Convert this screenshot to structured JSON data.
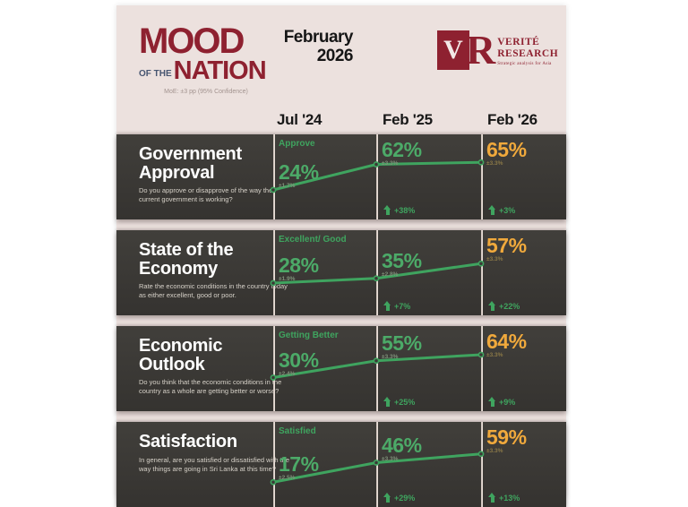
{
  "header": {
    "logo_word1": "MOOD",
    "logo_of_the": "OF THE",
    "logo_word2": "NATION",
    "moe_note": "MoE: ±3 pp (95% Confidence)",
    "date_line1": "February",
    "date_line2": "2026"
  },
  "brand": {
    "logo_v": "V",
    "logo_r": "R",
    "name_line1": "VERITÉ",
    "name_line2": "RESEARCH",
    "tagline": "Strategic analysis for Asia"
  },
  "columns": [
    "Jul '24",
    "Feb '25",
    "Feb '26"
  ],
  "colors": {
    "green": "#3fa45f",
    "orange": "#f0a93c",
    "maroon": "#8e2130",
    "navy": "#475671",
    "row_dark": "#3b3936",
    "background_pink": "#ece1de"
  },
  "rows": [
    {
      "title": "Government Approval",
      "question": "Do you approve or disapprove of the way the current government is working?",
      "series_label": "Approve",
      "points": [
        {
          "value": "24%",
          "moe": "±1.7%",
          "change": ""
        },
        {
          "value": "62%",
          "moe": "±3.3%",
          "change": "+38%"
        },
        {
          "value": "65%",
          "moe": "±3.3%",
          "change": "+3%"
        }
      ]
    },
    {
      "title": "State of the Economy",
      "question": "Rate the economic conditions in the country today as either excellent, good or poor.",
      "series_label": "Excellent/ Good",
      "points": [
        {
          "value": "28%",
          "moe": "±1.9%",
          "change": ""
        },
        {
          "value": "35%",
          "moe": "±2.8%",
          "change": "+7%"
        },
        {
          "value": "57%",
          "moe": "±3.3%",
          "change": "+22%"
        }
      ]
    },
    {
      "title": "Economic Outlook",
      "question": "Do you think that the economic conditions in the country as a whole are getting better or worse?",
      "series_label": "Getting Better",
      "points": [
        {
          "value": "30%",
          "moe": "±2.4%",
          "change": ""
        },
        {
          "value": "55%",
          "moe": "±3.3%",
          "change": "+25%"
        },
        {
          "value": "64%",
          "moe": "±3.3%",
          "change": "+9%"
        }
      ]
    },
    {
      "title": "Satisfaction",
      "question": "In general, are you satisfied or dissatisfied with the way things are going in Sri Lanka at this time?",
      "series_label": "Satisfied",
      "points": [
        {
          "value": "17%",
          "moe": "±2.5%",
          "change": ""
        },
        {
          "value": "46%",
          "moe": "±3.3%",
          "change": "+29%"
        },
        {
          "value": "59%",
          "moe": "±3.3%",
          "change": "+13%"
        }
      ]
    }
  ],
  "chart_data": {
    "type": "line",
    "title": "Mood of the Nation — February 2026",
    "categories": [
      "Jul '24",
      "Feb '25",
      "Feb '26"
    ],
    "series": [
      {
        "name": "Government Approval — Approve",
        "values": [
          24,
          62,
          65
        ],
        "moe": [
          "±1.7%",
          "±3.3%",
          "±3.3%"
        ],
        "changes": [
          null,
          38,
          3
        ]
      },
      {
        "name": "State of the Economy — Excellent/Good",
        "values": [
          28,
          35,
          57
        ],
        "moe": [
          "±1.9%",
          "±2.8%",
          "±3.3%"
        ],
        "changes": [
          null,
          7,
          22
        ]
      },
      {
        "name": "Economic Outlook — Getting Better",
        "values": [
          30,
          55,
          64
        ],
        "moe": [
          "±2.4%",
          "±3.3%",
          "±3.3%"
        ],
        "changes": [
          null,
          25,
          9
        ]
      },
      {
        "name": "Satisfaction — Satisfied",
        "values": [
          17,
          46,
          59
        ],
        "moe": [
          "±2.5%",
          "±3.3%",
          "±3.3%"
        ],
        "changes": [
          null,
          29,
          13
        ]
      }
    ],
    "ylim": [
      0,
      100
    ],
    "grid": false,
    "legend_position": "none",
    "line_color": "#3fa45f",
    "latest_point_color": "#f0a93c"
  }
}
